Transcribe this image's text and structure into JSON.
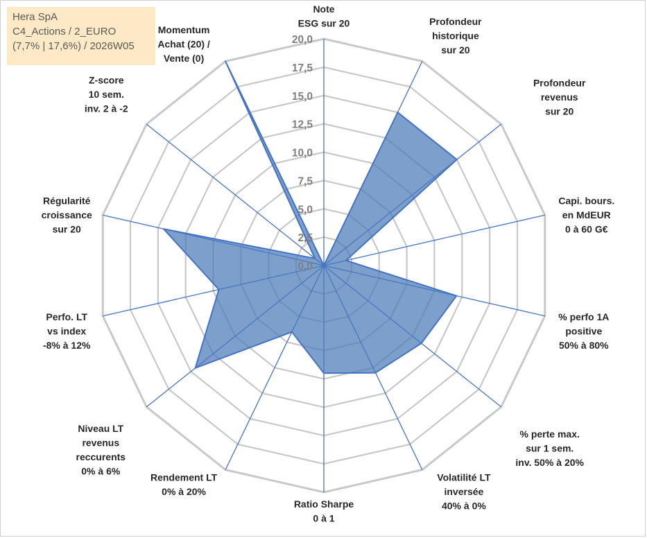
{
  "title": {
    "line1": "Hera SpA",
    "line2": "C4_Actions / 2_EURO",
    "line3": "(7,7% | 17,6%) / 2026W05"
  },
  "chart_data": {
    "type": "radar",
    "title": "Hera SpA",
    "ylim": [
      0,
      20
    ],
    "ticks": [
      "0,0",
      "2,5",
      "5,0",
      "7,5",
      "10,0",
      "12,5",
      "15,0",
      "17,5",
      "20,0"
    ],
    "grid": true,
    "axes": [
      {
        "label": [
          "Note",
          "ESG sur 20"
        ],
        "value": 0
      },
      {
        "label": [
          "Profondeur",
          "historique",
          "sur 20"
        ],
        "value": 15
      },
      {
        "label": [
          "Profondeur",
          "revenus",
          "sur 20"
        ],
        "value": 15
      },
      {
        "label": [
          "Capi. bours.",
          "en MdEUR",
          "0 à 60 G€"
        ],
        "value": 2
      },
      {
        "label": [
          "% perfo 1A",
          "positive",
          "50% à 80%"
        ],
        "value": 12
      },
      {
        "label": [
          "% perte max.",
          "sur 1 sem.",
          "inv. 50% à 20%"
        ],
        "value": 11
      },
      {
        "label": [
          "Volatilité LT",
          "inversée",
          "40% à 0%"
        ],
        "value": 10.5
      },
      {
        "label": [
          "Ratio Sharpe",
          "0 à 1"
        ],
        "value": 9.5
      },
      {
        "label": [
          "Rendement LT",
          "0% à 20%"
        ],
        "value": 6.5
      },
      {
        "label": [
          "Niveau LT",
          "revenus",
          "reccurents",
          "0% à 6%"
        ],
        "value": 14.5
      },
      {
        "label": [
          "Perfo. LT",
          "vs index",
          "-8% à 12%"
        ],
        "value": 9.5
      },
      {
        "label": [
          "Régularité",
          "croissance",
          "sur 20"
        ],
        "value": 14.5
      },
      {
        "label": [
          "Z-score",
          "10 sem.",
          "inv. 2 à -2"
        ],
        "value": 1
      },
      {
        "label": [
          "Momentum",
          "Achat (20) /",
          "Vente (0)"
        ],
        "value": 20
      }
    ],
    "colors": {
      "fill": "#4a7ab8",
      "stroke": "#4472c4",
      "spoke": "#4472c4",
      "grid": "#c8c8c8"
    }
  }
}
